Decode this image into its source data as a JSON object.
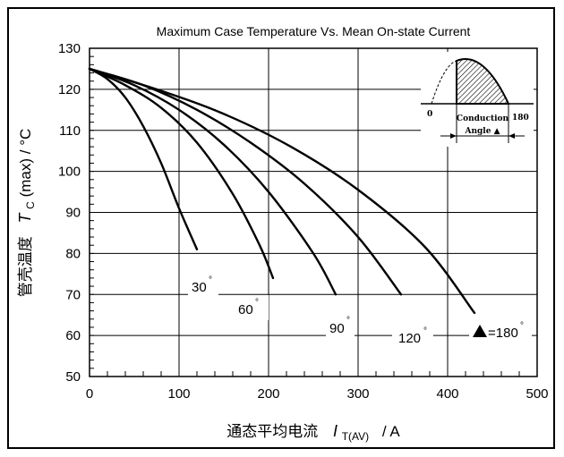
{
  "chart_data": {
    "type": "line",
    "title": "Maximum Case Temperature Vs. Mean On-state Current",
    "xlabel_cn": "通态平均电流",
    "xlabel_sym": "I",
    "xlabel_sub": "T(AV)",
    "xlabel_unit": "/  A",
    "ylabel_cn": "管壳温度",
    "ylabel_sym": "T",
    "ylabel_sub": "C",
    "ylabel_rest": "(max) / °C",
    "xlim": [
      0,
      500
    ],
    "ylim": [
      50,
      130
    ],
    "xticks": [
      "0",
      "100",
      "200",
      "300",
      "400",
      "500"
    ],
    "yticks": [
      "50",
      "60",
      "70",
      "80",
      "90",
      "100",
      "110",
      "120",
      "130"
    ],
    "grid": true,
    "series": [
      {
        "name": "30°",
        "x": [
          0,
          20,
          40,
          60,
          80,
          100,
          120
        ],
        "y": [
          125,
          122.5,
          118,
          111,
          102,
          91,
          81
        ]
      },
      {
        "name": "60°",
        "x": [
          0,
          40,
          80,
          120,
          160,
          190,
          205
        ],
        "y": [
          125,
          121,
          115.5,
          107,
          94.5,
          82,
          74
        ]
      },
      {
        "name": "90°",
        "x": [
          0,
          50,
          100,
          150,
          200,
          250,
          275
        ],
        "y": [
          125,
          121,
          115,
          106.5,
          95,
          80,
          70
        ]
      },
      {
        "name": "120°",
        "x": [
          0,
          60,
          120,
          180,
          240,
          300,
          348
        ],
        "y": [
          125,
          121,
          115,
          107,
          97,
          84,
          70
        ]
      },
      {
        "name": "180°",
        "x": [
          0,
          75,
          150,
          225,
          300,
          375,
          430
        ],
        "y": [
          125,
          120,
          114,
          106,
          95.5,
          81.5,
          65.5
        ]
      }
    ],
    "curve_labels": [
      {
        "text": "30",
        "deg": "°"
      },
      {
        "text": "60",
        "deg": "°"
      },
      {
        "text": "90",
        "deg": "°"
      },
      {
        "text": "120",
        "deg": "°"
      },
      {
        "text": "=180",
        "deg": "°"
      }
    ]
  },
  "inset": {
    "label_0": "0",
    "label_180": "180",
    "conduction": "Conduction",
    "angle": "Angle ▲"
  }
}
